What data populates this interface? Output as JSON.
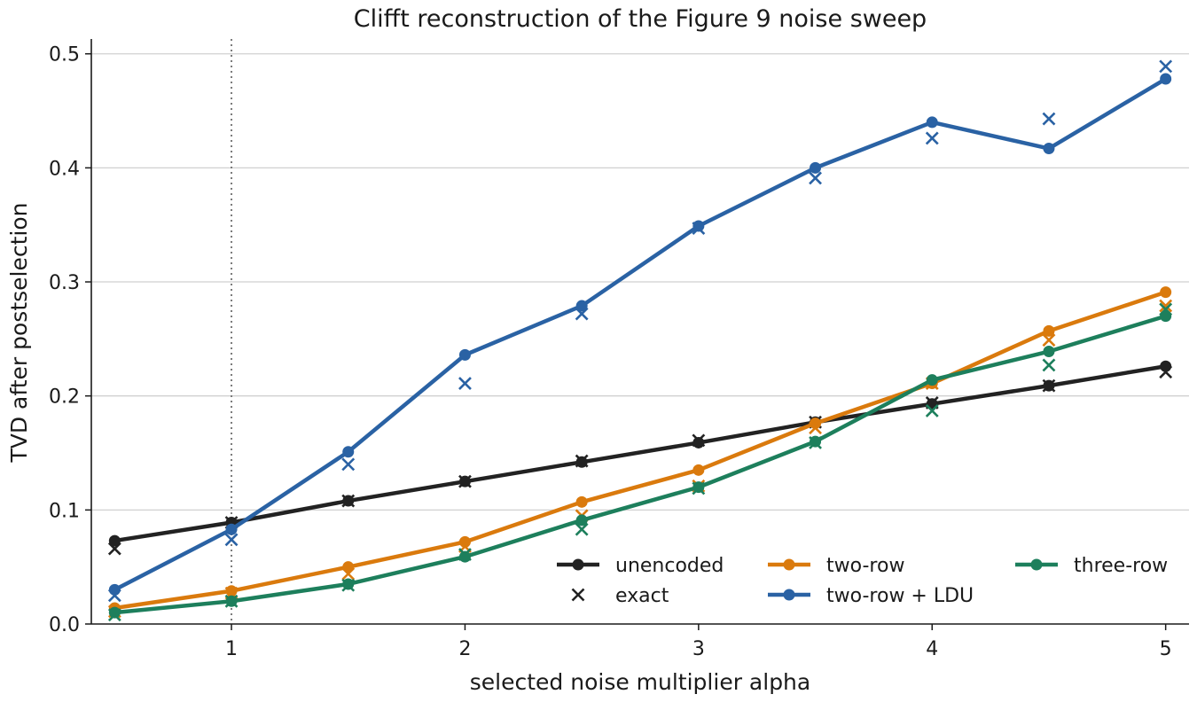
{
  "chart_data": {
    "type": "line",
    "title": "Clifft reconstruction of the Figure 9 noise sweep",
    "xlabel": "selected noise multiplier alpha",
    "ylabel": "TVD after postselection",
    "xlim": [
      0.4,
      5.1
    ],
    "ylim": [
      0.0,
      0.513
    ],
    "xticks": [
      1,
      2,
      3,
      4,
      5
    ],
    "yticks": [
      0.0,
      0.1,
      0.2,
      0.3,
      0.4,
      0.5
    ],
    "grid": "horizontal",
    "reference_line": {
      "x": 1,
      "style": "dotted"
    },
    "legend_placement": "lower-right",
    "x": [
      0.5,
      1.0,
      1.5,
      2.0,
      2.5,
      3.0,
      3.5,
      4.0,
      4.5,
      5.0
    ],
    "series": [
      {
        "name": "unencoded",
        "color": "#222222",
        "values": [
          0.073,
          0.089,
          0.108,
          0.125,
          0.142,
          0.159,
          0.177,
          0.193,
          0.209,
          0.226
        ],
        "exact": [
          0.066,
          0.089,
          0.108,
          0.125,
          0.143,
          0.161,
          0.177,
          0.194,
          0.209,
          0.221
        ]
      },
      {
        "name": "two-row",
        "color": "#DA7A0D",
        "values": [
          0.014,
          0.029,
          0.05,
          0.072,
          0.107,
          0.135,
          0.176,
          0.211,
          0.257,
          0.291
        ],
        "exact": [
          0.011,
          0.027,
          0.044,
          0.068,
          0.095,
          0.121,
          0.172,
          0.211,
          0.249,
          0.279
        ]
      },
      {
        "name": "two-row + LDU",
        "color": "#2A62A4",
        "values": [
          0.03,
          0.083,
          0.151,
          0.236,
          0.279,
          0.349,
          0.4,
          0.44,
          0.417,
          0.478
        ],
        "exact": [
          0.025,
          0.074,
          0.14,
          0.211,
          0.272,
          0.347,
          0.391,
          0.426,
          0.443,
          0.489
        ]
      },
      {
        "name": "three-row",
        "color": "#1D7F5C",
        "values": [
          0.01,
          0.02,
          0.035,
          0.059,
          0.091,
          0.12,
          0.16,
          0.214,
          0.239,
          0.27
        ],
        "exact": [
          0.008,
          0.02,
          0.034,
          0.061,
          0.083,
          0.119,
          0.159,
          0.187,
          0.227,
          0.276
        ]
      }
    ],
    "legend": [
      {
        "label": "unencoded",
        "marker": "line-dot",
        "color": "#222222"
      },
      {
        "label": "exact",
        "marker": "x",
        "color": "#222222"
      },
      {
        "label": "two-row",
        "marker": "line-dot",
        "color": "#DA7A0D"
      },
      {
        "label": "two-row + LDU",
        "marker": "line-dot",
        "color": "#2A62A4"
      },
      {
        "label": "three-row",
        "marker": "line-dot",
        "color": "#1D7F5C"
      }
    ]
  }
}
